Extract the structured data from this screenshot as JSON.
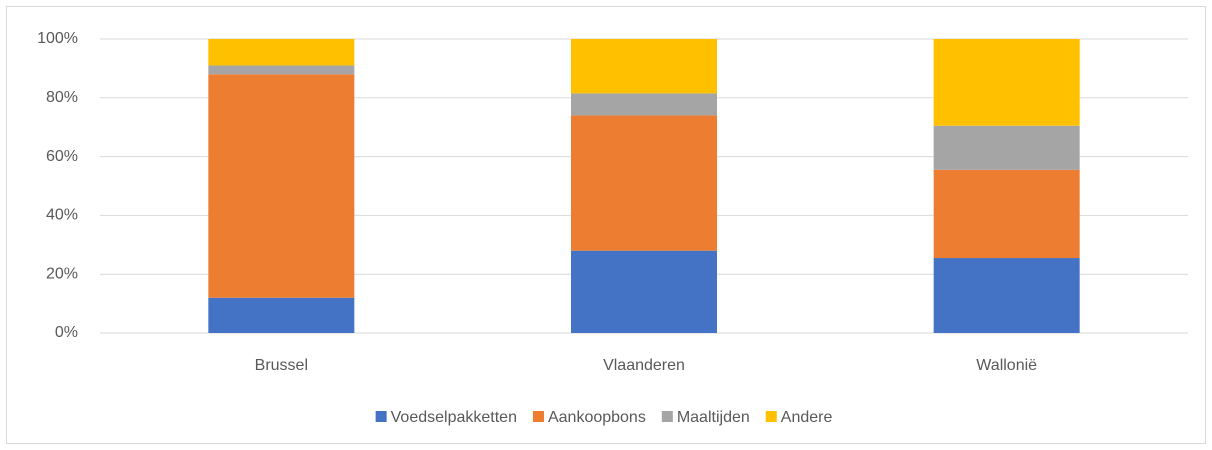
{
  "chart_data": {
    "type": "stacked_bar",
    "categories": [
      "Brussel",
      "Vlaanderen",
      "Wallonië"
    ],
    "series": [
      {
        "name": "Voedselpakketten",
        "color": "#4472c4",
        "values": [
          12,
          28,
          25.5
        ]
      },
      {
        "name": "Aankoopbons",
        "color": "#ed7d31",
        "values": [
          76,
          46,
          30
        ]
      },
      {
        "name": "Maaltijden",
        "color": "#a5a5a5",
        "values": [
          3,
          7.5,
          15
        ]
      },
      {
        "name": "Andere",
        "color": "#ffc000",
        "values": [
          9,
          18.5,
          29.5
        ]
      }
    ],
    "ylim": [
      0,
      100
    ],
    "yticks": [
      {
        "value": 0,
        "label": "0%"
      },
      {
        "value": 20,
        "label": "20%"
      },
      {
        "value": 40,
        "label": "40%"
      },
      {
        "value": 60,
        "label": "60%"
      },
      {
        "value": 80,
        "label": "80%"
      },
      {
        "value": 100,
        "label": "100%"
      }
    ],
    "grid": true,
    "legend": "bottom"
  }
}
